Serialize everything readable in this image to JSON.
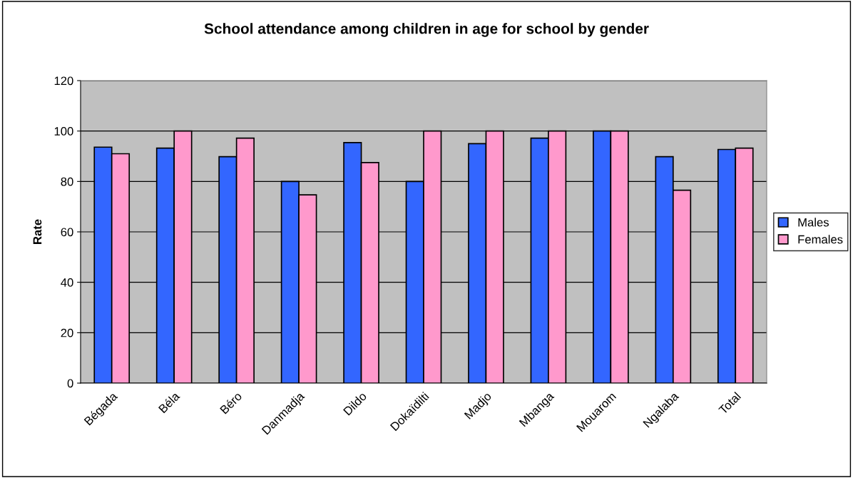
{
  "chart_data": {
    "type": "bar",
    "title": "School attendance among children in age for school by gender",
    "ylabel": "Rate",
    "categories": [
      "Bégada",
      "Béla",
      "Béro",
      "Danmadja",
      "Dildo",
      "Dokaïdilti",
      "Madjo",
      "Mbanga",
      "Mouarom",
      "Ngalaba",
      "Total"
    ],
    "series": [
      {
        "name": "Males",
        "color": "#3366ff",
        "values": [
          93.6,
          93.2,
          89.8,
          80,
          95.4,
          80,
          95.0,
          97.2,
          100,
          89.8,
          92.7
        ]
      },
      {
        "name": "Females",
        "color": "#ff99cc",
        "values": [
          91.0,
          100,
          97.2,
          74.7,
          87.5,
          100,
          100,
          100,
          100,
          76.5,
          93.2
        ]
      }
    ],
    "ylim": [
      0,
      120
    ],
    "yticks": [
      0,
      20,
      40,
      60,
      80,
      100,
      120
    ],
    "grid": "y",
    "legend": "right"
  }
}
